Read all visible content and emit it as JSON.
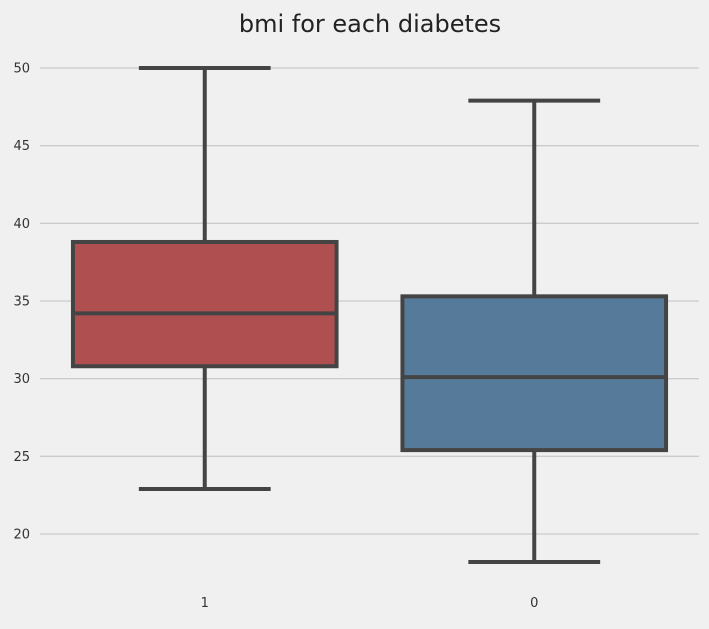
{
  "chart_data": {
    "type": "box",
    "title": "bmi for each diabetes",
    "xlabel": "",
    "ylabel": "",
    "categories": [
      "1",
      "0"
    ],
    "ylim": [
      17,
      52
    ],
    "yticks": [
      20,
      25,
      30,
      35,
      40,
      45,
      50
    ],
    "grid": "horizontal",
    "boxes": [
      {
        "category": "1",
        "whisker_low": 22.9,
        "q1": 30.8,
        "median": 34.2,
        "q3": 38.8,
        "whisker_high": 50.0,
        "color": "#b04f4f"
      },
      {
        "category": "0",
        "whisker_low": 18.2,
        "q1": 25.4,
        "median": 30.1,
        "q3": 35.3,
        "whisker_high": 47.9,
        "color": "#567b9a"
      }
    ]
  },
  "colors": {
    "background": "#f0f0f0",
    "grid": "#cbcbcb",
    "edge": "#444444"
  }
}
